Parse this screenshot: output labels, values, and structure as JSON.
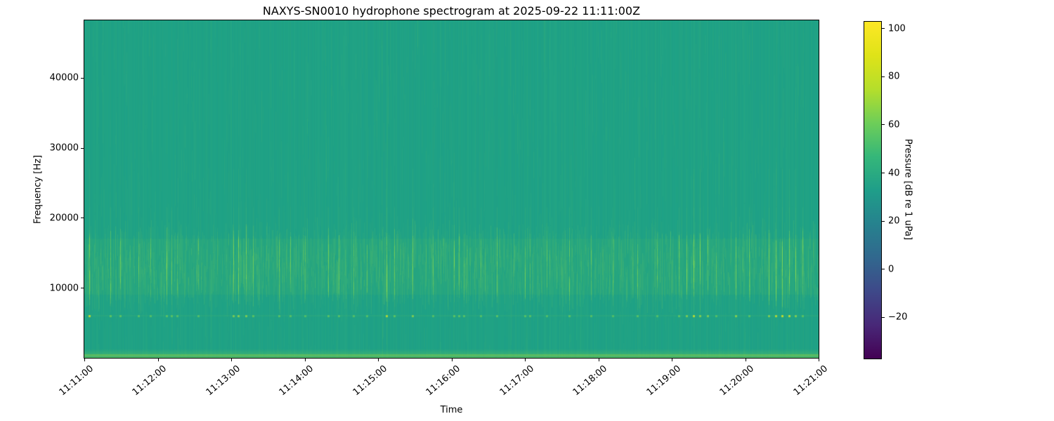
{
  "chart_data": {
    "type": "heatmap",
    "subtype": "spectrogram",
    "title": "NAXYS-SN0010 hydrophone spectrogram at 2025-09-22 11:11:00Z",
    "xlabel": "Time",
    "ylabel": "Frequency [Hz]",
    "start_time": "11:11:00",
    "x_range_s": [
      0,
      600
    ],
    "x_tick_labels": [
      "11:11:00",
      "11:12:00",
      "11:13:00",
      "11:14:00",
      "11:15:00",
      "11:16:00",
      "11:17:00",
      "11:18:00",
      "11:19:00",
      "11:20:00",
      "11:21:00"
    ],
    "freq_range_hz": [
      0,
      48200
    ],
    "y_tick_values": [
      10000,
      20000,
      30000,
      40000
    ],
    "y_tick_labels": [
      "10000",
      "20000",
      "30000",
      "40000"
    ],
    "grid": false,
    "colorbar": {
      "label": "Pressure [dB re 1 uPa]",
      "tick_values": [
        100,
        80,
        60,
        40,
        20,
        0,
        -20
      ],
      "tick_labels": [
        "100",
        "80",
        "60",
        "40",
        "20",
        "0",
        "−20"
      ],
      "value_range_db": [
        -37,
        103
      ],
      "colormap": "viridis"
    },
    "colormap_stops": [
      "#440154",
      "#482878",
      "#3e4989",
      "#31688e",
      "#26828e",
      "#1f9e89",
      "#35b779",
      "#6ece58",
      "#b5de2b",
      "#dfe318",
      "#fde725"
    ],
    "background_color": "#1fa286",
    "background_level_db": 52,
    "features": {
      "broadband_band_hz": [
        9000,
        17000
      ],
      "secondary_band_hz": [
        17000,
        21500
      ],
      "transient_dot_freq_hz": 6000,
      "low_freq_bright_band_hz": [
        0,
        900
      ],
      "events": [
        {
          "t_s": 4,
          "intensity": 0.9
        },
        {
          "t_s": 21,
          "intensity": 0.55
        },
        {
          "t_s": 29,
          "intensity": 0.5
        },
        {
          "t_s": 44,
          "intensity": 0.45
        },
        {
          "t_s": 54,
          "intensity": 0.35
        },
        {
          "t_s": 67,
          "intensity": 0.5
        },
        {
          "t_s": 71,
          "intensity": 0.45
        },
        {
          "t_s": 76,
          "intensity": 0.4
        },
        {
          "t_s": 93,
          "intensity": 0.4
        },
        {
          "t_s": 122,
          "intensity": 0.6
        },
        {
          "t_s": 126,
          "intensity": 0.75
        },
        {
          "t_s": 132,
          "intensity": 0.65
        },
        {
          "t_s": 138,
          "intensity": 0.5
        },
        {
          "t_s": 159,
          "intensity": 0.45
        },
        {
          "t_s": 168,
          "intensity": 0.4
        },
        {
          "t_s": 180,
          "intensity": 0.35
        },
        {
          "t_s": 199,
          "intensity": 0.5
        },
        {
          "t_s": 208,
          "intensity": 0.45
        },
        {
          "t_s": 220,
          "intensity": 0.4
        },
        {
          "t_s": 231,
          "intensity": 0.35
        },
        {
          "t_s": 247,
          "intensity": 0.8
        },
        {
          "t_s": 253,
          "intensity": 0.55
        },
        {
          "t_s": 268,
          "intensity": 0.7
        },
        {
          "t_s": 285,
          "intensity": 0.4
        },
        {
          "t_s": 302,
          "intensity": 0.55
        },
        {
          "t_s": 306,
          "intensity": 0.5
        },
        {
          "t_s": 310,
          "intensity": 0.45
        },
        {
          "t_s": 324,
          "intensity": 0.35
        },
        {
          "t_s": 337,
          "intensity": 0.5
        },
        {
          "t_s": 360,
          "intensity": 0.45
        },
        {
          "t_s": 364,
          "intensity": 0.4
        },
        {
          "t_s": 378,
          "intensity": 0.35
        },
        {
          "t_s": 396,
          "intensity": 0.5
        },
        {
          "t_s": 414,
          "intensity": 0.4
        },
        {
          "t_s": 432,
          "intensity": 0.35
        },
        {
          "t_s": 452,
          "intensity": 0.45
        },
        {
          "t_s": 468,
          "intensity": 0.35
        },
        {
          "t_s": 486,
          "intensity": 0.55
        },
        {
          "t_s": 492,
          "intensity": 0.6
        },
        {
          "t_s": 498,
          "intensity": 0.85
        },
        {
          "t_s": 503,
          "intensity": 0.7
        },
        {
          "t_s": 509,
          "intensity": 0.6
        },
        {
          "t_s": 516,
          "intensity": 0.4
        },
        {
          "t_s": 532,
          "intensity": 0.75
        },
        {
          "t_s": 543,
          "intensity": 0.45
        },
        {
          "t_s": 559,
          "intensity": 0.7
        },
        {
          "t_s": 565,
          "intensity": 0.8
        },
        {
          "t_s": 570,
          "intensity": 0.95
        },
        {
          "t_s": 576,
          "intensity": 0.85
        },
        {
          "t_s": 581,
          "intensity": 0.7
        },
        {
          "t_s": 587,
          "intensity": 0.5
        }
      ]
    }
  }
}
